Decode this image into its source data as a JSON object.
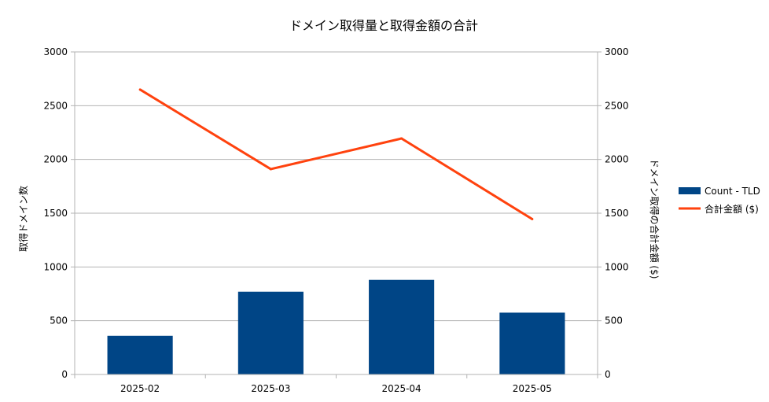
{
  "chart_data": {
    "type": "bar",
    "title": "ドメイン取得量と取得金額の合計",
    "categories": [
      "2025-02",
      "2025-03",
      "2025-04",
      "2025-05"
    ],
    "series": [
      {
        "name": "Count - TLD",
        "type": "bar",
        "axis": "left",
        "values": [
          360,
          770,
          880,
          575
        ],
        "color": "#004586"
      },
      {
        "name": "合計金額 ($)",
        "type": "line",
        "axis": "right",
        "values": [
          2650,
          1910,
          2195,
          1445
        ],
        "color": "#ff420e"
      }
    ],
    "ylabel_left": "取得ドメイン数",
    "ylabel_right": "ドメイン取得の合計金額 ($)",
    "ylim_left": [
      0,
      3000
    ],
    "ylim_right": [
      0,
      3000
    ],
    "yticks_left": [
      "0",
      "500",
      "1000",
      "1500",
      "2000",
      "2500",
      "3000"
    ],
    "yticks_right": [
      "0",
      "500",
      "1000",
      "1500",
      "2000",
      "2500",
      "3000"
    ],
    "grid": true,
    "legend_position": "right"
  }
}
